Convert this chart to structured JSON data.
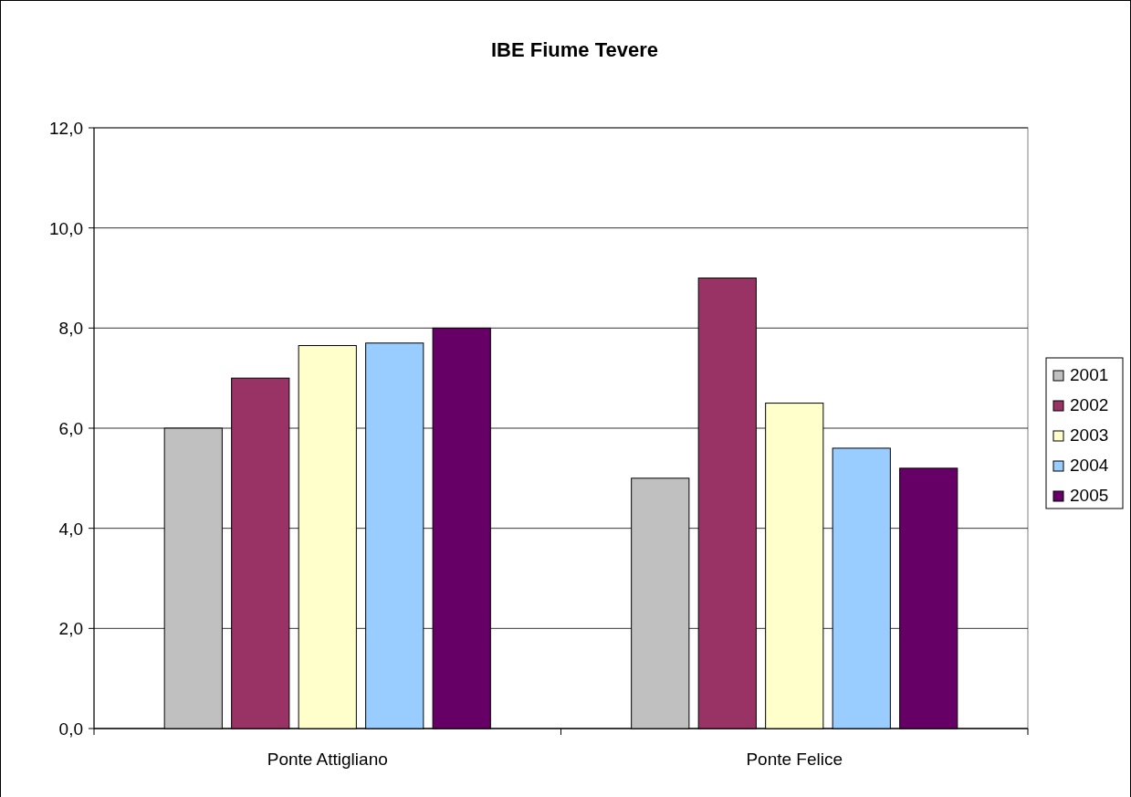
{
  "chart_data": {
    "type": "bar",
    "title": "IBE Fiume Tevere",
    "categories": [
      "Ponte Attigliano",
      "Ponte Felice"
    ],
    "series": [
      {
        "name": "2001",
        "color": "#c0c0c0",
        "values": [
          6.0,
          5.0
        ]
      },
      {
        "name": "2002",
        "color": "#993366",
        "values": [
          7.0,
          9.0
        ]
      },
      {
        "name": "2003",
        "color": "#ffffcc",
        "values": [
          7.65,
          6.5
        ]
      },
      {
        "name": "2004",
        "color": "#99ccff",
        "values": [
          7.7,
          5.6
        ]
      },
      {
        "name": "2005",
        "color": "#660066",
        "values": [
          8.0,
          5.2
        ]
      }
    ],
    "ylim": [
      0,
      12
    ],
    "yticks": [
      {
        "value": 0,
        "label": "0,0"
      },
      {
        "value": 2,
        "label": "2,0"
      },
      {
        "value": 4,
        "label": "4,0"
      },
      {
        "value": 6,
        "label": "6,0"
      },
      {
        "value": 8,
        "label": "8,0"
      },
      {
        "value": 10,
        "label": "10,0"
      },
      {
        "value": 12,
        "label": "12,0"
      }
    ],
    "grid": "y",
    "legend": "right"
  }
}
